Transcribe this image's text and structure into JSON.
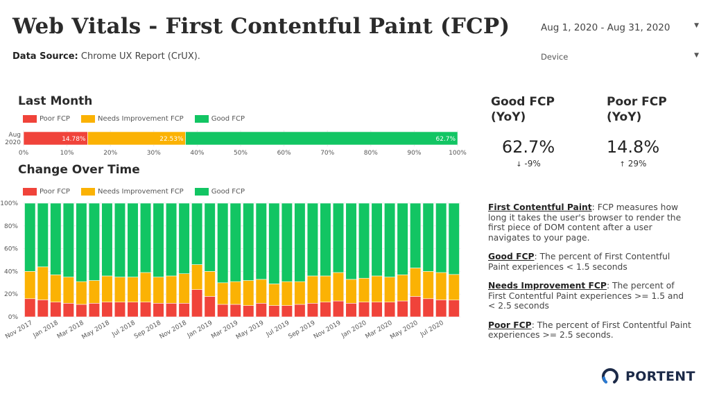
{
  "header": {
    "title": "Web Vitals - First Contentful Paint (FCP)",
    "source_label": "Data Source:",
    "source_value": "Chrome UX Report (CrUX)."
  },
  "controls": {
    "date_range": "Aug 1, 2020 - Aug 31, 2020",
    "device": "Device"
  },
  "sections": {
    "last_month": "Last Month",
    "over_time": "Change Over Time"
  },
  "legend": {
    "poor": "Poor FCP",
    "needs": "Needs Improvement FCP",
    "good": "Good FCP"
  },
  "colors": {
    "poor": "#f0433a",
    "needs": "#fbb204",
    "good": "#12c563"
  },
  "kpis": {
    "good": {
      "title_line1": "Good FCP",
      "title_line2": "(YoY)",
      "value": "62.7%",
      "arrow": "↓",
      "delta": "-9%"
    },
    "poor": {
      "title_line1": "Poor FCP",
      "title_line2": "(YoY)",
      "value": "14.8%",
      "arrow": "↑",
      "delta": "29%"
    }
  },
  "notes": {
    "fcp_term": "First Contentful Paint",
    "fcp_text": ": FCP measures how long it takes the user's browser to render the first piece of DOM content after a user navigates to your page.",
    "good_term": "Good FCP",
    "good_text": ": The percent of First Contentful Paint experiences < 1.5 seconds",
    "needs_term": "Needs Improvement FCP",
    "needs_text": ": The percent of First Contentful Paint experiences >= 1.5 and < 2.5 seconds",
    "poor_term": "Poor FCP",
    "poor_text": ": The percent of First Contentful Paint experiences >= 2.5 seconds."
  },
  "logo": {
    "text": "PORTENT"
  },
  "chart_data": [
    {
      "type": "bar",
      "orientation": "horizontal-stacked",
      "title": "Last Month",
      "categories": [
        "Aug 2020"
      ],
      "series": [
        {
          "name": "Poor FCP",
          "values": [
            14.78
          ],
          "labels": [
            "14.78%"
          ]
        },
        {
          "name": "Needs Improvement FCP",
          "values": [
            22.53
          ],
          "labels": [
            "22.53%"
          ]
        },
        {
          "name": "Good FCP",
          "values": [
            62.7
          ],
          "labels": [
            "62.7%"
          ]
        }
      ],
      "xlim": [
        0,
        100
      ],
      "xticks": [
        "0%",
        "10%",
        "20%",
        "30%",
        "40%",
        "50%",
        "60%",
        "70%",
        "80%",
        "90%",
        "100%"
      ],
      "legend": "top-left"
    },
    {
      "type": "bar",
      "orientation": "vertical-stacked",
      "title": "Change Over Time",
      "x": [
        "Nov 2017",
        "Dec 2017",
        "Jan 2018",
        "Feb 2018",
        "Mar 2018",
        "Apr 2018",
        "May 2018",
        "Jun 2018",
        "Jul 2018",
        "Aug 2018",
        "Sep 2018",
        "Oct 2018",
        "Nov 2018",
        "Dec 2018",
        "Jan 2019",
        "Feb 2019",
        "Mar 2019",
        "Apr 2019",
        "May 2019",
        "Jun 2019",
        "Jul 2019",
        "Aug 2019",
        "Sep 2019",
        "Oct 2019",
        "Nov 2019",
        "Dec 2019",
        "Jan 2020",
        "Feb 2020",
        "Mar 2020",
        "Apr 2020",
        "May 2020",
        "Jun 2020",
        "Jul 2020",
        "Aug 2020"
      ],
      "xtick_labels": [
        "Nov 2017",
        "Jan 2018",
        "Mar 2018",
        "May 2018",
        "Jul 2018",
        "Sep 2018",
        "Nov 2018",
        "Jan 2019",
        "Mar 2019",
        "May 2019",
        "Jul 2019",
        "Sep 2019",
        "Nov 2019",
        "Jan 2020",
        "Mar 2020",
        "May 2020",
        "Jul 2020"
      ],
      "series": [
        {
          "name": "Poor FCP",
          "values": [
            16,
            15,
            13,
            12,
            11,
            12,
            13,
            13,
            13,
            13,
            12,
            12,
            12,
            24,
            18,
            11,
            11,
            10,
            12,
            10,
            10,
            11,
            12,
            13,
            14,
            12,
            13,
            13,
            13,
            14,
            18,
            16,
            15,
            14.8
          ]
        },
        {
          "name": "Needs Improvement FCP",
          "values": [
            24,
            29,
            24,
            23,
            20,
            20,
            23,
            22,
            22,
            26,
            23,
            24,
            26,
            22,
            22,
            19,
            20,
            22,
            21,
            19,
            21,
            20,
            24,
            23,
            25,
            21,
            21,
            23,
            22,
            23,
            25,
            24,
            24,
            22.5
          ]
        },
        {
          "name": "Good FCP",
          "values": [
            60,
            56,
            63,
            65,
            69,
            68,
            64,
            65,
            65,
            61,
            65,
            64,
            62,
            54,
            60,
            70,
            69,
            68,
            67,
            71,
            69,
            69,
            64,
            64,
            61,
            67,
            66,
            64,
            65,
            63,
            57,
            60,
            61,
            62.7
          ]
        }
      ],
      "ylim": [
        0,
        100
      ],
      "yticks": [
        "0%",
        "20%",
        "40%",
        "60%",
        "80%",
        "100%"
      ],
      "legend": "top-left"
    }
  ]
}
